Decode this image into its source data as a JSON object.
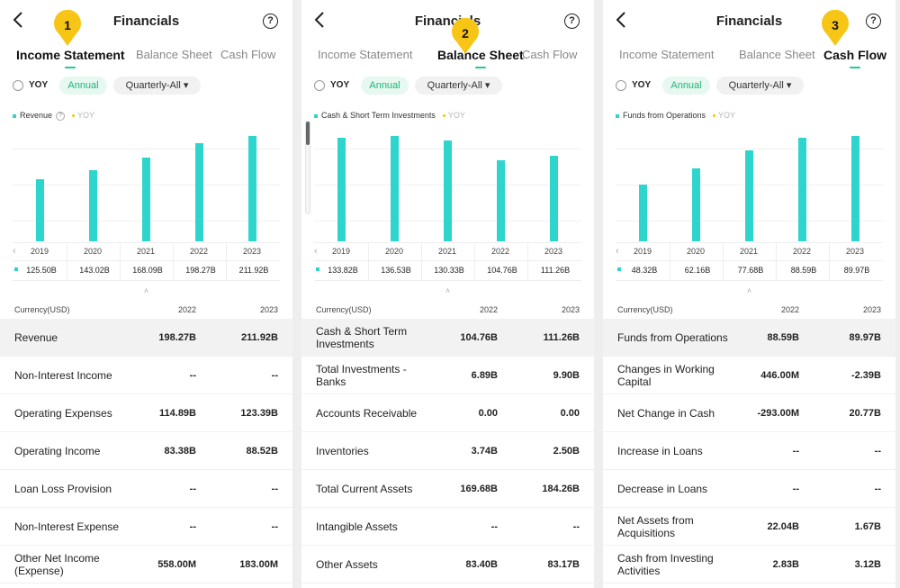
{
  "header": {
    "title": "Financials"
  },
  "tabs": [
    "Income Statement",
    "Balance Sheet",
    "Cash Flow"
  ],
  "filters": {
    "yoy": "YOY",
    "annual": "Annual",
    "period": "Quarterly-All"
  },
  "colors": {
    "bar": "#2ed5cd",
    "accent": "#23c99a",
    "badge": "#f7c516"
  },
  "panels": [
    {
      "badge": "1",
      "active_tab": 0,
      "legend": "Revenue",
      "legend_yoy": "YOY",
      "years": [
        "2019",
        "2020",
        "2021",
        "2022",
        "2023"
      ],
      "values": [
        "125.50B",
        "143.02B",
        "168.09B",
        "198.27B",
        "211.92B"
      ],
      "currency": "Currency(USD)",
      "cols": [
        "2022",
        "2023"
      ],
      "rows": [
        {
          "label": "Revenue",
          "v1": "198.27B",
          "v2": "211.92B"
        },
        {
          "label": "Non-Interest Income",
          "v1": "--",
          "v2": "--"
        },
        {
          "label": "Operating Expenses",
          "v1": "114.89B",
          "v2": "123.39B"
        },
        {
          "label": "Operating Income",
          "v1": "83.38B",
          "v2": "88.52B"
        },
        {
          "label": "Loan Loss Provision",
          "v1": "--",
          "v2": "--"
        },
        {
          "label": "Non-Interest Expense",
          "v1": "--",
          "v2": "--"
        },
        {
          "label": "Other Net Income (Expense)",
          "v1": "558.00M",
          "v2": "183.00M"
        }
      ]
    },
    {
      "badge": "2",
      "active_tab": 1,
      "legend": "Cash & Short Term Investments",
      "legend_yoy": "YOY",
      "years": [
        "2019",
        "2020",
        "2021",
        "2022",
        "2023"
      ],
      "values": [
        "133.82B",
        "136.53B",
        "130.33B",
        "104.76B",
        "111.26B"
      ],
      "currency": "Currency(USD)",
      "cols": [
        "2022",
        "2023"
      ],
      "rows": [
        {
          "label": "Cash & Short Term Investments",
          "v1": "104.76B",
          "v2": "111.26B"
        },
        {
          "label": "Total Investments - Banks",
          "v1": "6.89B",
          "v2": "9.90B"
        },
        {
          "label": "Accounts Receivable",
          "v1": "0.00",
          "v2": "0.00"
        },
        {
          "label": "Inventories",
          "v1": "3.74B",
          "v2": "2.50B"
        },
        {
          "label": "Total Current Assets",
          "v1": "169.68B",
          "v2": "184.26B"
        },
        {
          "label": "Intangible Assets",
          "v1": "--",
          "v2": "--"
        },
        {
          "label": "Other Assets",
          "v1": "83.40B",
          "v2": "83.17B"
        }
      ]
    },
    {
      "badge": "3",
      "active_tab": 2,
      "legend": "Funds from Operations",
      "legend_yoy": "YOY",
      "years": [
        "2019",
        "2020",
        "2021",
        "2022",
        "2023"
      ],
      "values": [
        "48.32B",
        "62.16B",
        "77.68B",
        "88.59B",
        "89.97B"
      ],
      "currency": "Currency(USD)",
      "cols": [
        "2022",
        "2023"
      ],
      "rows": [
        {
          "label": "Funds from Operations",
          "v1": "88.59B",
          "v2": "89.97B"
        },
        {
          "label": "Changes in Working Capital",
          "v1": "446.00M",
          "v2": "-2.39B"
        },
        {
          "label": "Net Change in Cash",
          "v1": "-293.00M",
          "v2": "20.77B"
        },
        {
          "label": "Increase in Loans",
          "v1": "--",
          "v2": "--"
        },
        {
          "label": "Decrease in Loans",
          "v1": "--",
          "v2": "--"
        },
        {
          "label": "Net Assets from Acquisitions",
          "v1": "22.04B",
          "v2": "1.67B"
        },
        {
          "label": "Cash from Investing Activities",
          "v1": "2.83B",
          "v2": "3.12B"
        }
      ]
    }
  ],
  "chart_data": [
    {
      "type": "bar",
      "categories": [
        "2019",
        "2020",
        "2021",
        "2022",
        "2023"
      ],
      "series": [
        {
          "name": "Revenue",
          "values": [
            125.5,
            143.02,
            168.09,
            198.27,
            211.92
          ]
        }
      ]
    },
    {
      "type": "bar",
      "categories": [
        "2019",
        "2020",
        "2021",
        "2022",
        "2023"
      ],
      "series": [
        {
          "name": "Cash & Short Term Investments",
          "values": [
            133.82,
            136.53,
            130.33,
            104.76,
            111.26
          ]
        }
      ]
    },
    {
      "type": "bar",
      "categories": [
        "2019",
        "2020",
        "2021",
        "2022",
        "2023"
      ],
      "series": [
        {
          "name": "Funds from Operations",
          "values": [
            48.32,
            62.16,
            77.68,
            88.59,
            89.97
          ]
        }
      ]
    }
  ]
}
